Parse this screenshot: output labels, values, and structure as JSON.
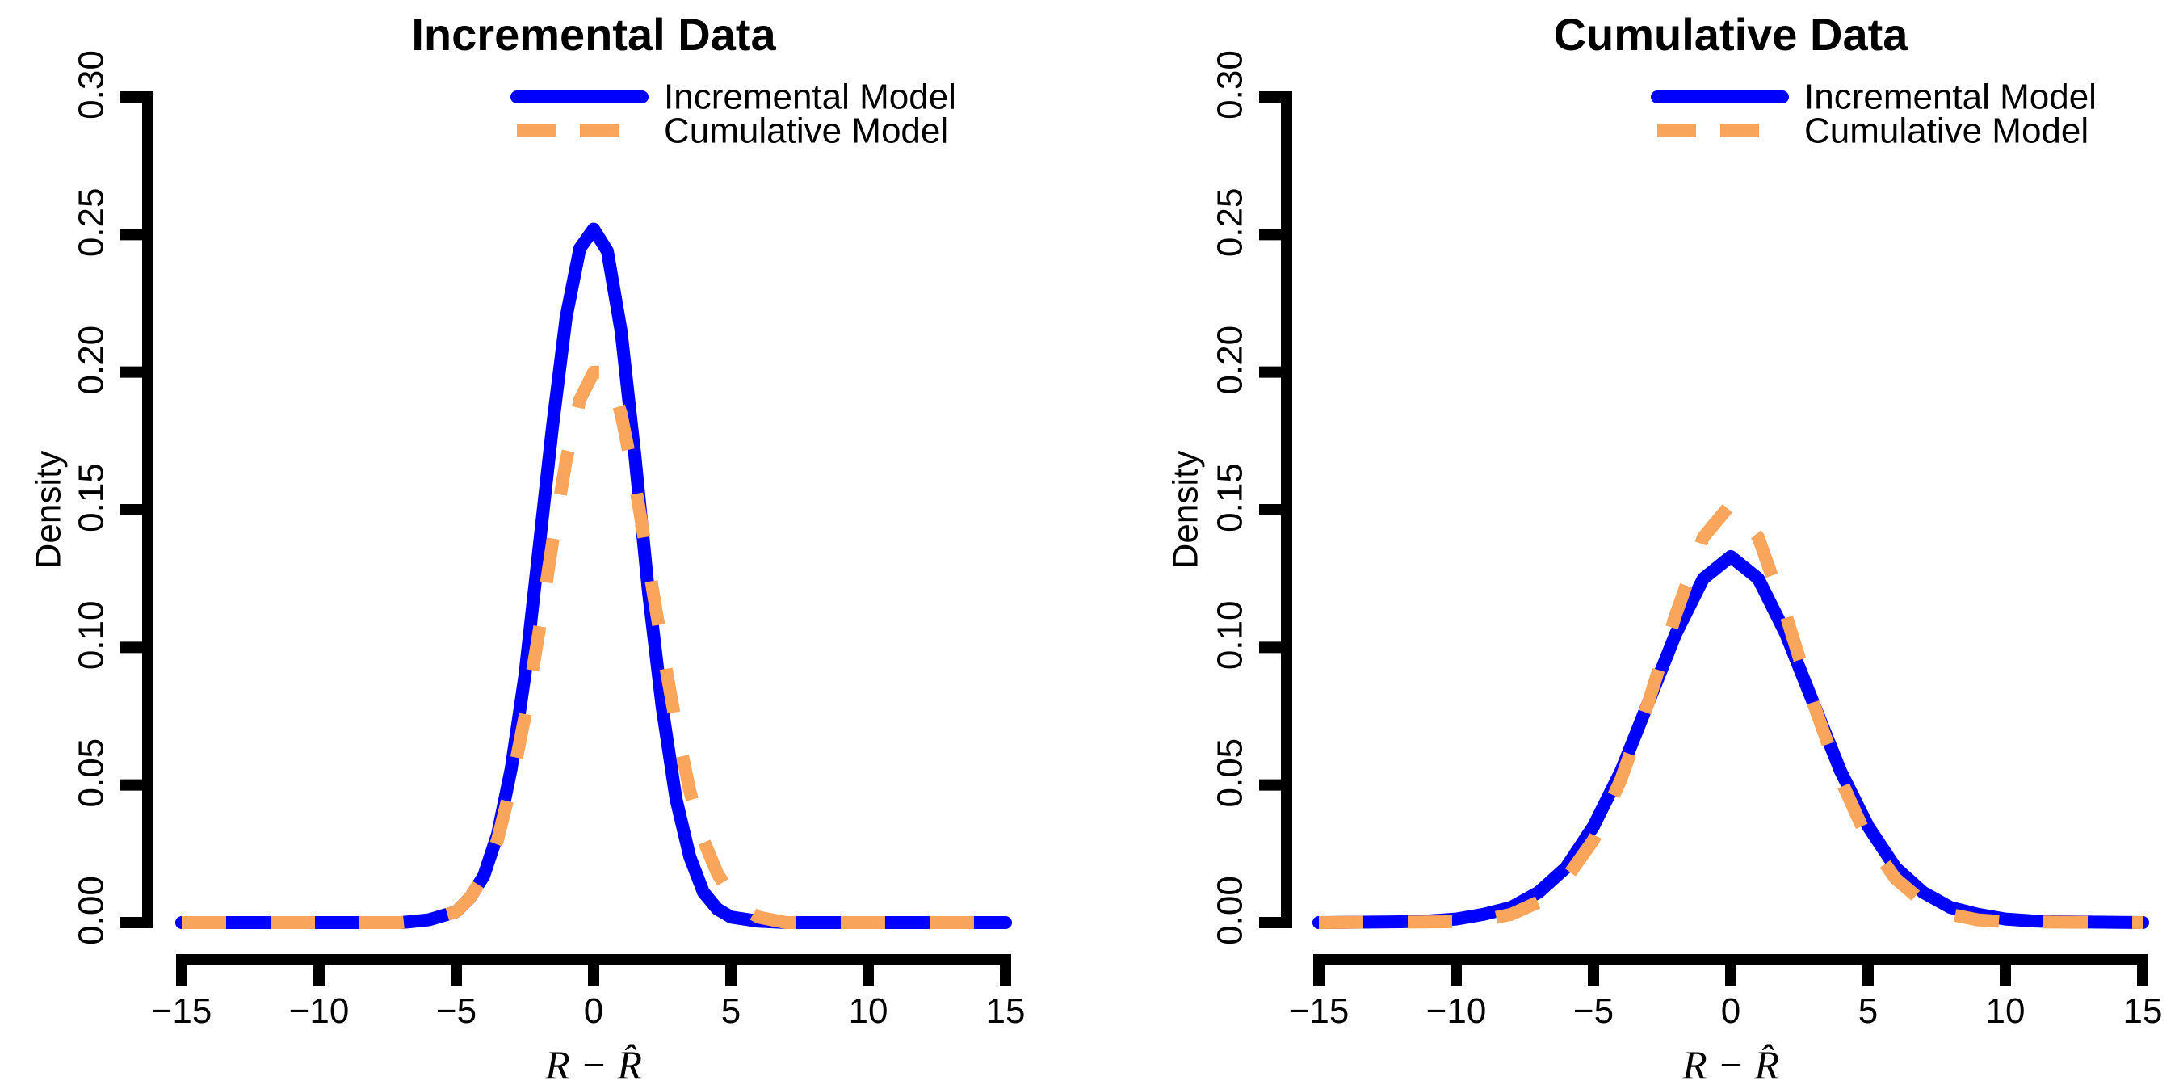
{
  "chart_data": [
    {
      "type": "line",
      "title": "Incremental Data",
      "xlabel": "R − R̂",
      "ylabel": "Density",
      "xlim": [
        -15,
        15
      ],
      "ylim": [
        0,
        0.3
      ],
      "xticks": [
        "−15",
        "−10",
        "−5",
        "0",
        "5",
        "10",
        "15"
      ],
      "yticks": [
        "0.00",
        "0.05",
        "0.10",
        "0.15",
        "0.20",
        "0.25",
        "0.30"
      ],
      "legend": {
        "position": "top-right",
        "entries": [
          "Incremental Model",
          "Cumulative Model"
        ]
      },
      "series": [
        {
          "name": "Incremental Model",
          "color": "#0000ff",
          "dash": "solid",
          "x": [
            -15,
            -7,
            -6,
            -5,
            -4.5,
            -4,
            -3.5,
            -3,
            -2.5,
            -2,
            -1.5,
            -1,
            -0.5,
            0,
            0.5,
            1,
            1.5,
            2,
            2.5,
            3,
            3.5,
            4,
            4.5,
            5,
            6,
            7,
            15
          ],
          "y": [
            0,
            0,
            0.001,
            0.004,
            0.009,
            0.017,
            0.032,
            0.056,
            0.09,
            0.135,
            0.18,
            0.22,
            0.245,
            0.252,
            0.244,
            0.215,
            0.17,
            0.12,
            0.078,
            0.045,
            0.024,
            0.011,
            0.005,
            0.002,
            0.0005,
            0,
            0
          ]
        },
        {
          "name": "Cumulative Model",
          "color": "#f9a55b",
          "dash": "dashed",
          "x": [
            -15,
            -7,
            -6,
            -5,
            -4.5,
            -4,
            -3.5,
            -3,
            -2.5,
            -2,
            -1.5,
            -1,
            -0.5,
            0,
            0.5,
            1,
            1.5,
            2,
            2.5,
            3,
            3.5,
            4,
            4.5,
            5,
            5.5,
            6,
            6.5,
            7,
            8,
            15
          ],
          "y": [
            0,
            0,
            0.001,
            0.004,
            0.009,
            0.017,
            0.03,
            0.05,
            0.075,
            0.105,
            0.138,
            0.168,
            0.19,
            0.2,
            0.2,
            0.185,
            0.16,
            0.13,
            0.1,
            0.072,
            0.048,
            0.03,
            0.018,
            0.01,
            0.005,
            0.002,
            0.001,
            0,
            0,
            0
          ]
        }
      ]
    },
    {
      "type": "line",
      "title": "Cumulative Data",
      "xlabel": "R − R̂",
      "ylabel": "Density",
      "xlim": [
        -15,
        15
      ],
      "ylim": [
        0,
        0.3
      ],
      "xticks": [
        "−15",
        "−10",
        "−5",
        "0",
        "5",
        "10",
        "15"
      ],
      "yticks": [
        "0.00",
        "0.05",
        "0.10",
        "0.15",
        "0.20",
        "0.25",
        "0.30"
      ],
      "legend": {
        "position": "top-right",
        "entries": [
          "Incremental Model",
          "Cumulative Model"
        ]
      },
      "series": [
        {
          "name": "Incremental Model",
          "color": "#0000ff",
          "dash": "solid",
          "x": [
            -15,
            -12,
            -11,
            -10,
            -9,
            -8,
            -7,
            -6,
            -5,
            -4,
            -3,
            -2,
            -1,
            0,
            1,
            2,
            3,
            4,
            5,
            6,
            7,
            8,
            9,
            10,
            11,
            12,
            15
          ],
          "y": [
            0,
            0.0003,
            0.0006,
            0.0013,
            0.003,
            0.0055,
            0.011,
            0.02,
            0.035,
            0.055,
            0.08,
            0.105,
            0.125,
            0.133,
            0.125,
            0.105,
            0.08,
            0.055,
            0.035,
            0.02,
            0.011,
            0.0055,
            0.003,
            0.0013,
            0.0006,
            0.0003,
            0
          ]
        },
        {
          "name": "Cumulative Model",
          "color": "#f9a55b",
          "dash": "dashed",
          "x": [
            -15,
            -10,
            -9,
            -8,
            -7,
            -6,
            -5,
            -4,
            -3,
            -2,
            -1,
            0,
            1,
            2,
            3,
            4,
            5,
            6,
            7,
            8,
            9,
            10,
            15
          ],
          "y": [
            0,
            0.0003,
            0.001,
            0.003,
            0.0075,
            0.016,
            0.03,
            0.052,
            0.08,
            0.112,
            0.14,
            0.152,
            0.14,
            0.112,
            0.08,
            0.052,
            0.03,
            0.016,
            0.0075,
            0.003,
            0.001,
            0.0003,
            0
          ]
        }
      ]
    }
  ]
}
